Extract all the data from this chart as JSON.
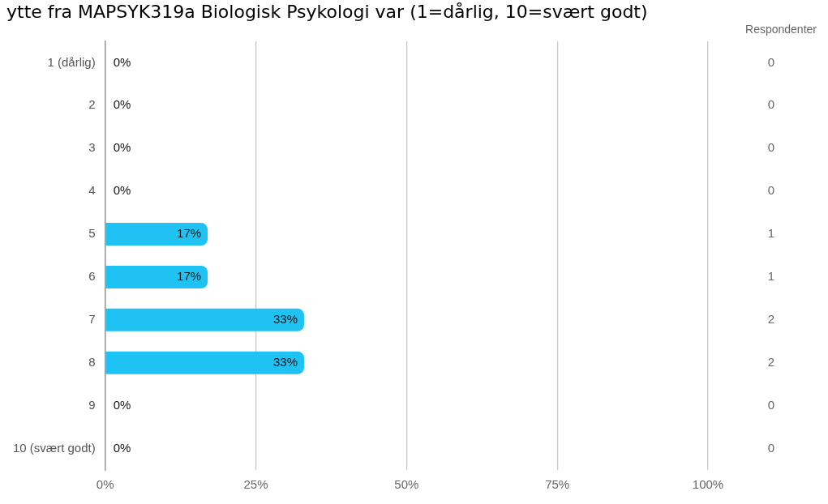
{
  "chart_data": {
    "type": "bar",
    "orientation": "horizontal",
    "title": "ytte fra MAPSYK319a Biologisk Psykologi var (1=dårlig, 10=svært godt)",
    "categories": [
      "1 (dårlig)",
      "2",
      "3",
      "4",
      "5",
      "6",
      "7",
      "8",
      "9",
      "10 (svært godt)"
    ],
    "values": [
      0,
      0,
      0,
      0,
      17,
      17,
      33,
      33,
      0,
      0
    ],
    "value_labels": [
      "0%",
      "0%",
      "0%",
      "0%",
      "17%",
      "17%",
      "33%",
      "33%",
      "0%",
      "0%"
    ],
    "color": "#1fc3f3",
    "xlim": [
      0,
      100
    ],
    "xticks": [
      {
        "value": 0,
        "label": "0%"
      },
      {
        "value": 25,
        "label": "25%"
      },
      {
        "value": 50,
        "label": "50%"
      },
      {
        "value": 75,
        "label": "75%"
      },
      {
        "value": 100,
        "label": "100%"
      }
    ],
    "grid": "x",
    "y2label": "Respondenter",
    "annotations": [
      "0",
      "0",
      "0",
      "0",
      "1",
      "1",
      "2",
      "2",
      "0",
      "0"
    ]
  }
}
